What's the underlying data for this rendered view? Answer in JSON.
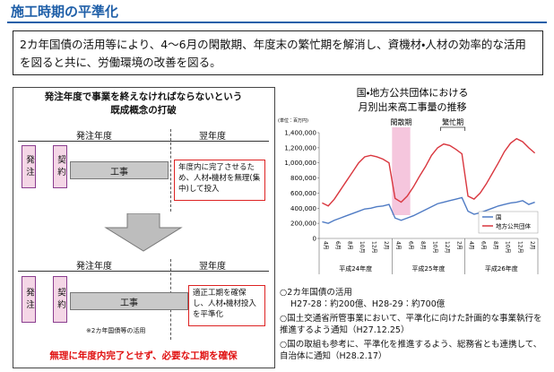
{
  "title": "施工時期の平準化",
  "intro": "2カ年国債の活用等により、4～6月の閑散期、年度末の繁忙期を解消し、資機材・人材の効率的な活用を図ると共に、労働環境の改善を図る。",
  "left": {
    "heading": [
      "発注年度で事業を終えなければならないという",
      "既成概念の打破"
    ],
    "before": {
      "year": "発注年度",
      "next_year": "翌年度",
      "order": "発注",
      "contract": "契約",
      "work": "工事",
      "note": "年度内に完了させるため、人材・機材を無理(集中)して投入"
    },
    "after": {
      "year": "発注年度",
      "next_year": "翌年度",
      "order": "発注",
      "contract": "契約",
      "work": "工事",
      "note": "適正工期を確保し、人材・機材投入を平準化",
      "footnote": "※2カ年国債等の活用"
    },
    "conclusion": "無理に年度内完了とせず、必要な工期を確保"
  },
  "chart_data": {
    "type": "line",
    "title": [
      "国・地方公共団体における",
      "月別出来高工事量の推移"
    ],
    "unit": "(単位：百万円)",
    "annotations": [
      "閑散期",
      "繁忙期"
    ],
    "categories": [
      "4月",
      null,
      "6月",
      null,
      "8月",
      null,
      "10月",
      null,
      "12月",
      null,
      "2月",
      null,
      "4月",
      null,
      "6月",
      null,
      "8月",
      null,
      "10月",
      null,
      "12月",
      null,
      "2月",
      null,
      "4月",
      null,
      "6月",
      null,
      "8月",
      null,
      "10月",
      null,
      "12月",
      null,
      "2月",
      null
    ],
    "year_labels": [
      "平成24年度",
      "平成25年度",
      "平成26年度"
    ],
    "ylim": [
      0,
      1400000
    ],
    "yticks": [
      0,
      {
        "value": 200000,
        "label": "200,000"
      },
      {
        "value": 400000,
        "label": "400,000"
      },
      {
        "value": 600000,
        "label": "600,000"
      },
      {
        "value": 800000,
        "label": "800,000"
      },
      {
        "value": 1000000,
        "label": "1,000,000"
      },
      {
        "value": 1200000,
        "label": "1,200,000"
      },
      {
        "value": 1400000,
        "label": "1,400,000"
      }
    ],
    "legend": "bottom-right",
    "series": [
      {
        "name": "国",
        "color": "#4f7bc4",
        "values": [
          220000,
          200000,
          240000,
          270000,
          300000,
          330000,
          360000,
          390000,
          400000,
          420000,
          430000,
          450000,
          270000,
          240000,
          270000,
          300000,
          340000,
          380000,
          420000,
          460000,
          480000,
          500000,
          520000,
          540000,
          360000,
          320000,
          340000,
          370000,
          400000,
          430000,
          450000,
          470000,
          480000,
          500000,
          450000,
          480000
        ]
      },
      {
        "name": "地方公共団体",
        "color": "#d9363e",
        "values": [
          470000,
          430000,
          520000,
          640000,
          760000,
          880000,
          1000000,
          1080000,
          1100000,
          1080000,
          1050000,
          1000000,
          530000,
          480000,
          560000,
          680000,
          820000,
          950000,
          1100000,
          1200000,
          1250000,
          1230000,
          1180000,
          1120000,
          560000,
          520000,
          600000,
          720000,
          860000,
          1000000,
          1150000,
          1260000,
          1320000,
          1280000,
          1200000,
          1130000
        ]
      }
    ]
  },
  "notes": [
    [
      "○2カ年国債の活用",
      "H27-28：約200億、H28-29：約700億"
    ],
    [
      "○国土交通省所管事業において、平準化に向けた計画的な事業執行を推進するよう通知（H27.12.25）"
    ],
    [
      "○国の取組も参考に、平準化を推進するよう、総務省とも連携して、自治体に通知（H28.2.17）"
    ]
  ]
}
